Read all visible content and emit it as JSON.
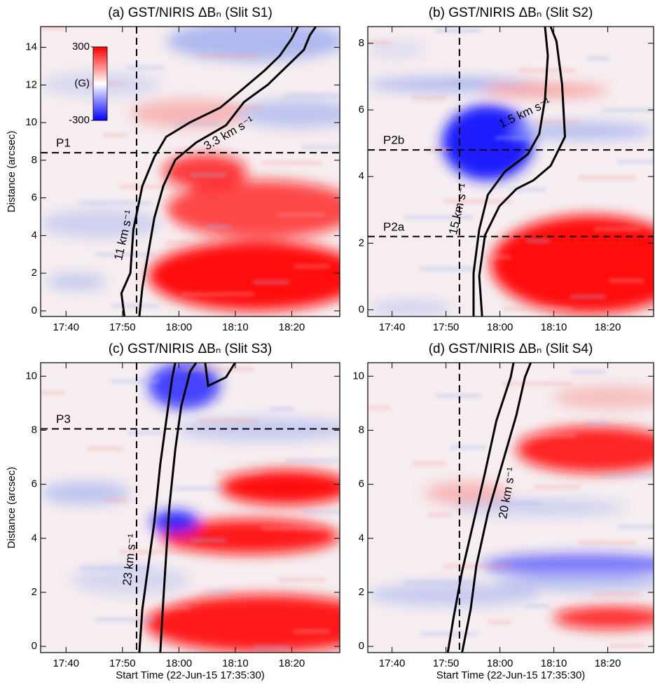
{
  "chart_data": [
    {
      "type": "heatmap",
      "title": "(a) GST/NIRIS ΔBₙ (Slit S1)",
      "ylabel": "Distance (arcsec)",
      "xlim": [
        35.5,
        88.5
      ],
      "xticks": [
        {
          "value": 40,
          "label": "17:40"
        },
        {
          "value": 50,
          "label": "17:50"
        },
        {
          "value": 60,
          "label": "18:00"
        },
        {
          "value": 70,
          "label": "18:10"
        },
        {
          "value": 80,
          "label": "18:20"
        }
      ],
      "ylim": [
        -0.3,
        15.1
      ],
      "yticks": [
        0,
        2,
        4,
        6,
        8,
        10,
        12,
        14
      ],
      "vlines": [
        52.5
      ],
      "hlines": [
        {
          "value": 8.4,
          "label": "P1"
        }
      ],
      "annotations": [
        "11 km s⁻¹",
        "3.3 km s⁻¹"
      ],
      "colorbar": {
        "clim": [
          -300,
          300
        ],
        "cticks": [
          300,
          -300
        ],
        "label": "(G)",
        "colors": [
          "#0000ff",
          "#ffffff",
          "#ff0000"
        ]
      }
    },
    {
      "type": "heatmap",
      "title": "(b) GST/NIRIS ΔBₙ (Slit S2)",
      "xlim": [
        35.5,
        88.5
      ],
      "xticks": [
        {
          "value": 40,
          "label": "17:40"
        },
        {
          "value": 50,
          "label": "17:50"
        },
        {
          "value": 60,
          "label": "18:00"
        },
        {
          "value": 70,
          "label": "18:10"
        },
        {
          "value": 80,
          "label": "18:20"
        }
      ],
      "ylim": [
        -0.2,
        8.5
      ],
      "yticks": [
        0,
        2,
        4,
        6,
        8
      ],
      "vlines": [
        52.5
      ],
      "hlines": [
        {
          "value": 4.8,
          "label": "P2b"
        },
        {
          "value": 2.2,
          "label": "P2a"
        }
      ],
      "annotations": [
        "1.5 km s⁻¹",
        "15 km s⁻¹"
      ]
    },
    {
      "type": "heatmap",
      "title": "(c) GST/NIRIS ΔBₙ (Slit S3)",
      "ylabel": "Distance (arcsec)",
      "xlabel": "Start Time (22-Jun-15 17:35:30)",
      "xlim": [
        35.5,
        88.5
      ],
      "xticks": [
        {
          "value": 40,
          "label": "17:40"
        },
        {
          "value": 50,
          "label": "17:50"
        },
        {
          "value": 60,
          "label": "18:00"
        },
        {
          "value": 70,
          "label": "18:10"
        },
        {
          "value": 80,
          "label": "18:20"
        }
      ],
      "ylim": [
        -0.23,
        10.5
      ],
      "yticks": [
        0,
        2,
        4,
        6,
        8,
        10
      ],
      "vlines": [
        52.5
      ],
      "hlines": [
        {
          "value": 8.05,
          "label": "P3"
        }
      ],
      "annotations": [
        "23 km s⁻¹"
      ]
    },
    {
      "type": "heatmap",
      "title": "(d) GST/NIRIS ΔBₙ (Slit S4)",
      "xlabel": "Start Time (22-Jun-15 17:35:30)",
      "xlim": [
        35.5,
        88.5
      ],
      "xticks": [
        {
          "value": 40,
          "label": "17:40"
        },
        {
          "value": 50,
          "label": "17:50"
        },
        {
          "value": 60,
          "label": "18:00"
        },
        {
          "value": 70,
          "label": "18:10"
        },
        {
          "value": 80,
          "label": "18:20"
        }
      ],
      "ylim": [
        -0.23,
        10.5
      ],
      "yticks": [
        0,
        2,
        4,
        6,
        8,
        10
      ],
      "vlines": [
        52.5
      ],
      "hlines": [],
      "annotations": [
        "20 km s⁻¹"
      ]
    }
  ]
}
